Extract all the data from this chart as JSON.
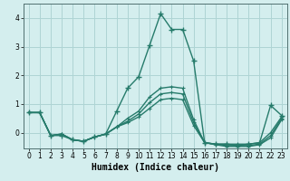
{
  "xlabel": "Humidex (Indice chaleur)",
  "x_values": [
    0,
    1,
    2,
    3,
    4,
    5,
    6,
    7,
    8,
    9,
    10,
    11,
    12,
    13,
    14,
    15,
    16,
    17,
    18,
    19,
    20,
    21,
    22,
    23
  ],
  "lines": [
    {
      "y": [
        0.7,
        0.7,
        -0.1,
        -0.1,
        -0.25,
        -0.3,
        -0.15,
        -0.05,
        0.75,
        1.55,
        1.95,
        3.05,
        4.15,
        3.6,
        3.6,
        2.5,
        -0.35,
        -0.4,
        -0.4,
        -0.45,
        -0.4,
        -0.35,
        0.95,
        0.6
      ],
      "color": "#267b6b",
      "linewidth": 1.0,
      "marker": "+",
      "markersize": 4,
      "markeredgewidth": 1.0,
      "zorder": 5
    },
    {
      "y": [
        0.7,
        0.7,
        -0.1,
        -0.05,
        -0.25,
        -0.3,
        -0.15,
        -0.05,
        0.2,
        0.5,
        0.75,
        1.25,
        1.55,
        1.6,
        1.55,
        0.45,
        -0.35,
        -0.4,
        -0.4,
        -0.4,
        -0.4,
        -0.35,
        0.0,
        0.55
      ],
      "color": "#267b6b",
      "linewidth": 1.0,
      "marker": "+",
      "markersize": 3,
      "markeredgewidth": 0.8,
      "zorder": 4
    },
    {
      "y": [
        0.7,
        0.7,
        -0.1,
        -0.05,
        -0.25,
        -0.3,
        -0.15,
        -0.05,
        0.2,
        0.4,
        0.65,
        1.05,
        1.35,
        1.4,
        1.35,
        0.35,
        -0.35,
        -0.4,
        -0.45,
        -0.45,
        -0.45,
        -0.4,
        -0.1,
        0.5
      ],
      "color": "#267b6b",
      "linewidth": 1.0,
      "marker": "+",
      "markersize": 3,
      "markeredgewidth": 0.8,
      "zorder": 3
    },
    {
      "y": [
        0.7,
        0.7,
        -0.1,
        -0.05,
        -0.25,
        -0.3,
        -0.15,
        -0.05,
        0.2,
        0.35,
        0.55,
        0.85,
        1.15,
        1.2,
        1.15,
        0.25,
        -0.35,
        -0.42,
        -0.48,
        -0.48,
        -0.48,
        -0.42,
        -0.18,
        0.45
      ],
      "color": "#267b6b",
      "linewidth": 1.0,
      "marker": "+",
      "markersize": 3,
      "markeredgewidth": 0.8,
      "zorder": 2
    }
  ],
  "xlim": [
    -0.5,
    23.5
  ],
  "ylim": [
    -0.55,
    4.5
  ],
  "yticks": [
    0,
    1,
    2,
    3,
    4
  ],
  "xticks": [
    0,
    1,
    2,
    3,
    4,
    5,
    6,
    7,
    8,
    9,
    10,
    11,
    12,
    13,
    14,
    15,
    16,
    17,
    18,
    19,
    20,
    21,
    22,
    23
  ],
  "bg_color": "#d4eeee",
  "grid_color": "#aed4d4",
  "line_color": "#267b6b",
  "tick_fontsize": 5.5,
  "label_fontsize": 7
}
